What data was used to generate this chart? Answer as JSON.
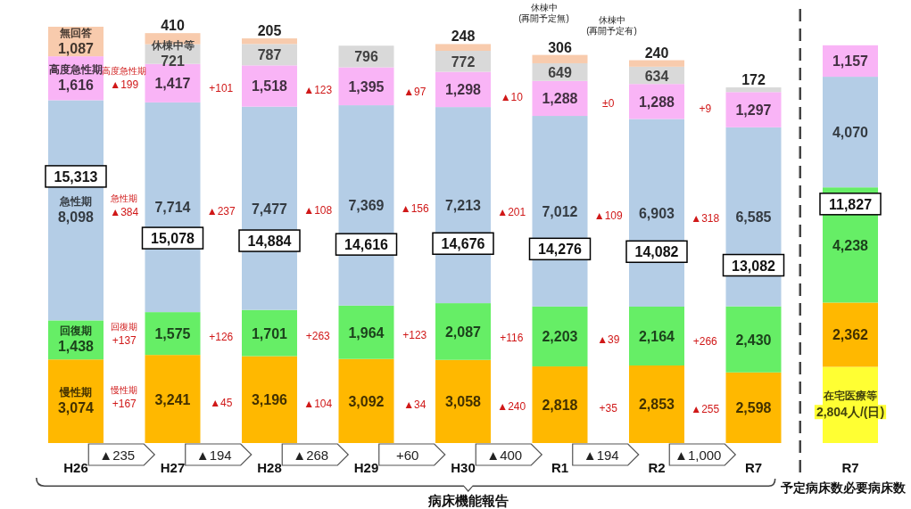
{
  "chart_data": {
    "type": "bar",
    "stacked": true,
    "categories": [
      "H26",
      "H27",
      "H28",
      "H29",
      "H30",
      "R1",
      "R2",
      "R7",
      "R7"
    ],
    "series": [
      {
        "name": "在宅医療等",
        "color": "#ffff33",
        "values": [
          null,
          null,
          null,
          null,
          null,
          null,
          null,
          null,
          2804
        ],
        "value_labels": [
          null,
          null,
          null,
          null,
          null,
          null,
          null,
          null,
          "2,804人/(日)"
        ]
      },
      {
        "name": "慢性期",
        "color": "#ffb800",
        "values": [
          3074,
          3241,
          3196,
          3092,
          3058,
          2818,
          2853,
          2598,
          2362
        ],
        "value_labels": [
          "3,074",
          "3,241",
          "3,196",
          "3,092",
          "3,058",
          "2,818",
          "2,853",
          "2,598",
          "2,362"
        ]
      },
      {
        "name": "回復期",
        "color": "#66ee66",
        "values": [
          1438,
          1575,
          1701,
          1964,
          2087,
          2203,
          2164,
          2430,
          4238
        ],
        "value_labels": [
          "1,438",
          "1,575",
          "1,701",
          "1,964",
          "2,087",
          "2,203",
          "2,164",
          "2,430",
          "4,238"
        ]
      },
      {
        "name": "急性期",
        "color": "#b4cde6",
        "values": [
          8098,
          7714,
          7477,
          7369,
          7213,
          7012,
          6903,
          6585,
          4070
        ],
        "value_labels": [
          "8,098",
          "7,714",
          "7,477",
          "7,369",
          "7,213",
          "7,012",
          "6,903",
          "6,585",
          "4,070"
        ]
      },
      {
        "name": "高度急性期",
        "color": "#f9b4f6",
        "values": [
          1616,
          1417,
          1518,
          1395,
          1298,
          1288,
          1288,
          1297,
          1157
        ],
        "value_labels": [
          "1,616",
          "1,417",
          "1,518",
          "1,395",
          "1,298",
          "1,288",
          "1,288",
          "1,297",
          "1,157"
        ]
      },
      {
        "name": "休棟中等",
        "color": "#d9d9d9",
        "values": [
          null,
          721,
          787,
          796,
          772,
          649,
          634,
          172,
          null
        ],
        "value_labels": [
          null,
          "721",
          "787",
          "796",
          "772",
          "649",
          "634",
          "172",
          null
        ]
      },
      {
        "name": "無回答",
        "color": "#f8cbad",
        "values": [
          1087,
          410,
          205,
          null,
          248,
          306,
          240,
          null,
          null
        ],
        "value_labels": [
          "1,087",
          "410",
          "205",
          null,
          "248",
          "306",
          "240",
          null,
          null
        ]
      }
    ],
    "totals": [
      "15,313",
      "15,078",
      "14,884",
      "14,616",
      "14,676",
      "14,276",
      "14,082",
      "13,082",
      null
    ],
    "annotations": [
      "▲199",
      "▲384",
      "+137",
      "+167",
      "+101",
      "▲237",
      "+126",
      "▲45",
      "▲123",
      "▲108",
      "+263",
      "▲104",
      "▲97",
      "▲156",
      "+123",
      "▲34",
      "▲10",
      "▲201",
      "+116",
      "▲240",
      "±0",
      "▲109",
      "▲39",
      "+35",
      "+9",
      "▲318",
      "+266",
      "▲255",
      "高度急性期",
      "急性期",
      "回復期",
      "慢性期",
      "▲235",
      "▲194",
      "▲268",
      "+60",
      "▲400",
      "▲194",
      "▲1,000",
      "休棟中\n(再開予定無)",
      "休棟中\n(再開予定有)",
      "病床機能報告",
      "予定病床数必要病床数",
      "11,827"
    ]
  }
}
